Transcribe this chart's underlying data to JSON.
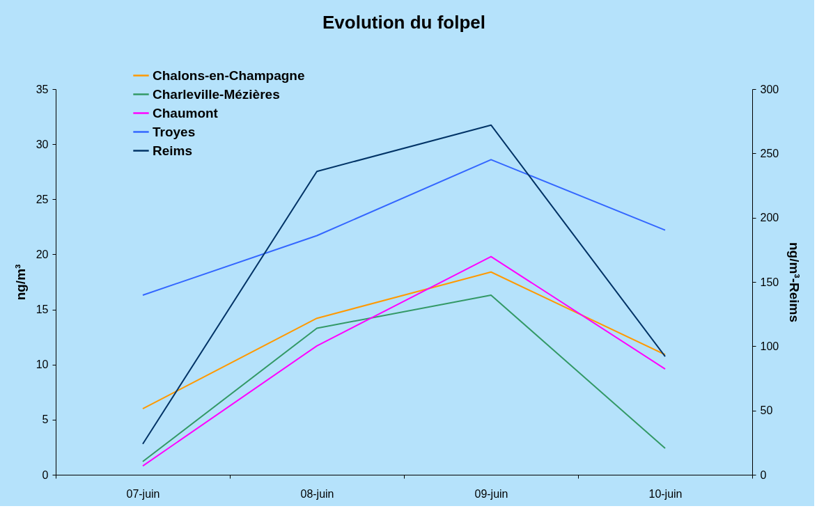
{
  "chart_data": {
    "type": "line",
    "title": "Evolution du folpel",
    "ylabel": "ng/m³",
    "y2label": "ng/m³-Reims",
    "categories": [
      "07-juin",
      "08-juin",
      "09-juin",
      "10-juin"
    ],
    "series": [
      {
        "name": "Chalons-en-Champagne",
        "color": "#ff9900",
        "values": [
          6.0,
          14.2,
          18.4,
          10.9
        ]
      },
      {
        "name": "Charleville-Mézières",
        "color": "#339966",
        "values": [
          1.2,
          13.3,
          16.3,
          2.4
        ]
      },
      {
        "name": "Chaumont",
        "color": "#ff00ff",
        "values": [
          0.8,
          11.7,
          19.8,
          9.6
        ]
      },
      {
        "name": "Troyes",
        "color": "#3366ff",
        "values": [
          16.3,
          21.7,
          28.6,
          22.2
        ]
      },
      {
        "name": "Reims",
        "color": "#003366",
        "values": [
          24,
          236,
          272,
          92
        ],
        "axis": "y2"
      }
    ],
    "ylim": [
      0,
      35
    ],
    "yticks": [
      0,
      5,
      10,
      15,
      20,
      25,
      30,
      35
    ],
    "y2lim": [
      0,
      300
    ],
    "y2ticks": [
      0,
      50,
      100,
      150,
      200,
      250,
      300
    ],
    "grid": false,
    "legend": "top left",
    "marker": "none",
    "line_style": "solid"
  }
}
